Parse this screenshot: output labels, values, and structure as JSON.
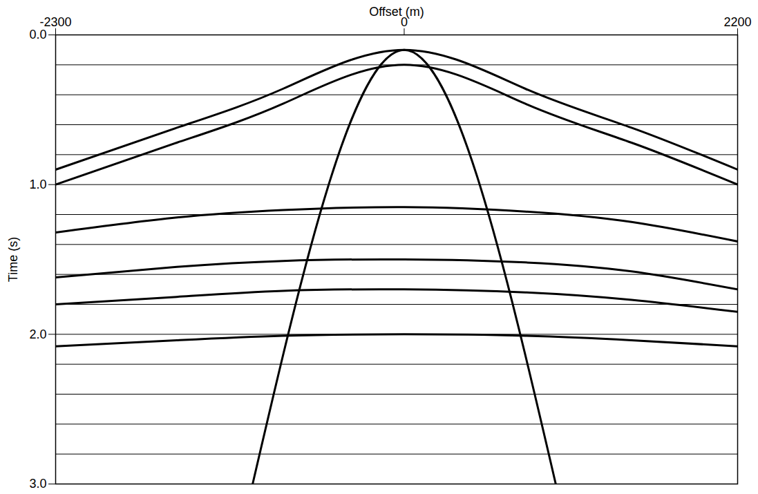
{
  "chart_data": {
    "type": "seismic_gather",
    "x_label": "Offset (m)",
    "y_label": "Time (s)",
    "xlim": [
      -2300,
      2200
    ],
    "xticks": [
      -2300,
      0,
      2200
    ],
    "ylim": [
      0,
      3
    ],
    "yticks": [
      {
        "value": 0,
        "label": "0.0"
      },
      {
        "value": 1,
        "label": "1.0"
      },
      {
        "value": 2,
        "label": "2.0"
      },
      {
        "value": 3,
        "label": "3.0"
      }
    ],
    "grid": true,
    "y_grid": [
      0.2,
      0.4,
      0.6,
      0.8,
      1.2,
      1.4,
      1.6,
      1.8,
      2.2,
      2.4,
      2.6,
      2.8
    ],
    "color": "#000000",
    "events": [
      {
        "x": [
          -2300,
          -1500,
          -800,
          0,
          800,
          1500,
          2200
        ],
        "y": [
          0.9,
          0.62,
          0.36,
          0.1,
          0.36,
          0.62,
          0.9
        ]
      },
      {
        "x": [
          -2300,
          -1500,
          -800,
          0,
          800,
          1500,
          2200
        ],
        "y": [
          1.0,
          0.72,
          0.46,
          0.2,
          0.46,
          0.72,
          1.0
        ]
      },
      {
        "x": [
          -2300,
          -1500,
          -800,
          0,
          800,
          1500,
          2200
        ],
        "y": [
          1.32,
          1.22,
          1.17,
          1.15,
          1.18,
          1.25,
          1.38
        ]
      },
      {
        "x": [
          -2300,
          -1500,
          -800,
          0,
          800,
          1500,
          2200
        ],
        "y": [
          1.62,
          1.55,
          1.51,
          1.5,
          1.52,
          1.58,
          1.7
        ]
      },
      {
        "x": [
          -2300,
          -1500,
          -800,
          0,
          800,
          1500,
          2200
        ],
        "y": [
          1.8,
          1.75,
          1.71,
          1.7,
          1.72,
          1.77,
          1.85
        ]
      },
      {
        "x": [
          -2300,
          -1500,
          -800,
          0,
          800,
          1500,
          2200
        ],
        "y": [
          2.08,
          2.04,
          2.01,
          2.0,
          2.01,
          2.04,
          2.08
        ]
      },
      {
        "x": [
          -1000,
          0,
          1000
        ],
        "y": [
          3.0,
          0.1,
          3.0
        ]
      }
    ]
  }
}
